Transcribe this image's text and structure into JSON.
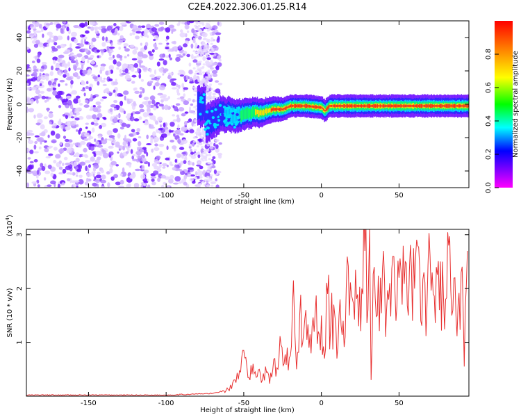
{
  "title": "C2E4.2022.306.01.25.R14",
  "chart_data": [
    {
      "type": "heatmap",
      "name": "spectrogram",
      "xlabel": "Height of straight line (km)",
      "ylabel": "Frequency (Hz)",
      "xlim": [
        -190,
        95
      ],
      "ylim": [
        -50,
        50
      ],
      "xticks": [
        "-150",
        "-100",
        "-50",
        "0",
        "50"
      ],
      "xtick_values": [
        -150,
        -100,
        -50,
        0,
        50
      ],
      "yticks": [
        "-40",
        "-20",
        "0",
        "20",
        "40"
      ],
      "ytick_values": [
        -40,
        -20,
        0,
        20,
        40
      ],
      "colorbar": {
        "label": "Normalized spectral amplitude",
        "range": [
          0.0,
          1.0
        ],
        "ticks": [
          "0.0",
          "0.2",
          "0.4",
          "0.6",
          "0.8"
        ],
        "tick_values": [
          0.0,
          0.2,
          0.4,
          0.6,
          0.8
        ]
      },
      "signal_center_frequency": [
        [
          -75,
          -12
        ],
        [
          -70,
          -9
        ],
        [
          -65,
          -6
        ],
        [
          -60,
          -6
        ],
        [
          -55,
          -7
        ],
        [
          -50,
          -6
        ],
        [
          -45,
          -5
        ],
        [
          -40,
          -5
        ],
        [
          -35,
          -4
        ],
        [
          -30,
          -3
        ],
        [
          -25,
          -3
        ],
        [
          -20,
          -1
        ],
        [
          -10,
          -1
        ],
        [
          0,
          -2
        ],
        [
          2,
          -4
        ],
        [
          5,
          -1
        ],
        [
          10,
          -1
        ],
        [
          20,
          -1
        ],
        [
          30,
          -1
        ],
        [
          40,
          -1
        ],
        [
          50,
          -1
        ],
        [
          60,
          -1
        ],
        [
          70,
          -1
        ],
        [
          80,
          -1
        ],
        [
          95,
          -1
        ]
      ]
    },
    {
      "type": "line",
      "name": "snr",
      "xlabel": "Height of straight line (km)",
      "ylabel": "SNR (10 * v/v)",
      "yscale_label": "(x10",
      "yscale_exp": "4",
      "yscale_close": ")",
      "xlim": [
        -190,
        95
      ],
      "ylim": [
        0,
        3.1
      ],
      "xticks": [
        "-150",
        "-100",
        "-50",
        "0",
        "50"
      ],
      "xtick_values": [
        -150,
        -100,
        -50,
        0,
        50
      ],
      "yticks": [
        "1",
        "2",
        "3"
      ],
      "ytick_values": [
        1,
        2,
        3
      ],
      "series": [
        {
          "color": "#e83030",
          "x": [
            -190,
            -150,
            -100,
            -70,
            -60,
            -55,
            -52,
            -50,
            -48,
            -46,
            -44,
            -42,
            -40,
            -38,
            -36,
            -34,
            -32,
            -30,
            -28,
            -26,
            -24,
            -22,
            -20,
            -18,
            -17,
            -16,
            -14,
            -12,
            -10,
            -8,
            -6,
            -4,
            -2,
            0,
            2,
            4,
            6,
            8,
            10,
            12,
            14,
            16,
            18,
            20,
            22,
            24,
            26,
            28,
            30,
            31,
            32,
            34,
            36,
            38,
            40,
            42,
            44,
            46,
            48,
            50,
            52,
            54,
            56,
            58,
            60,
            62,
            64,
            66,
            68,
            70,
            72,
            74,
            76,
            78,
            80,
            82,
            84,
            86,
            88,
            90,
            92,
            94
          ],
          "y": [
            0.02,
            0.02,
            0.02,
            0.05,
            0.12,
            0.25,
            0.45,
            0.85,
            0.55,
            0.3,
            0.6,
            0.35,
            0.5,
            0.3,
            0.55,
            0.4,
            0.35,
            0.7,
            0.5,
            0.95,
            0.6,
            0.9,
            0.75,
            2.15,
            1.1,
            0.5,
            1.5,
            1.0,
            1.6,
            0.9,
            1.3,
            1.55,
            1.2,
            1.5,
            0.7,
            1.9,
            1.3,
            1.7,
            0.7,
            1.8,
            1.4,
            2.0,
            1.5,
            1.8,
            2.35,
            1.3,
            2.0,
            2.7,
            1.6,
            3.1,
            0.3,
            2.4,
            1.5,
            2.2,
            2.7,
            1.6,
            2.1,
            2.6,
            1.4,
            2.2,
            1.7,
            2.5,
            1.5,
            2.4,
            2.0,
            2.8,
            1.4,
            2.3,
            1.7,
            2.6,
            1.9,
            2.4,
            1.6,
            2.5,
            1.8,
            2.8,
            1.5,
            2.2,
            1.7,
            2.3,
            0.55,
            2.7
          ]
        }
      ]
    }
  ]
}
